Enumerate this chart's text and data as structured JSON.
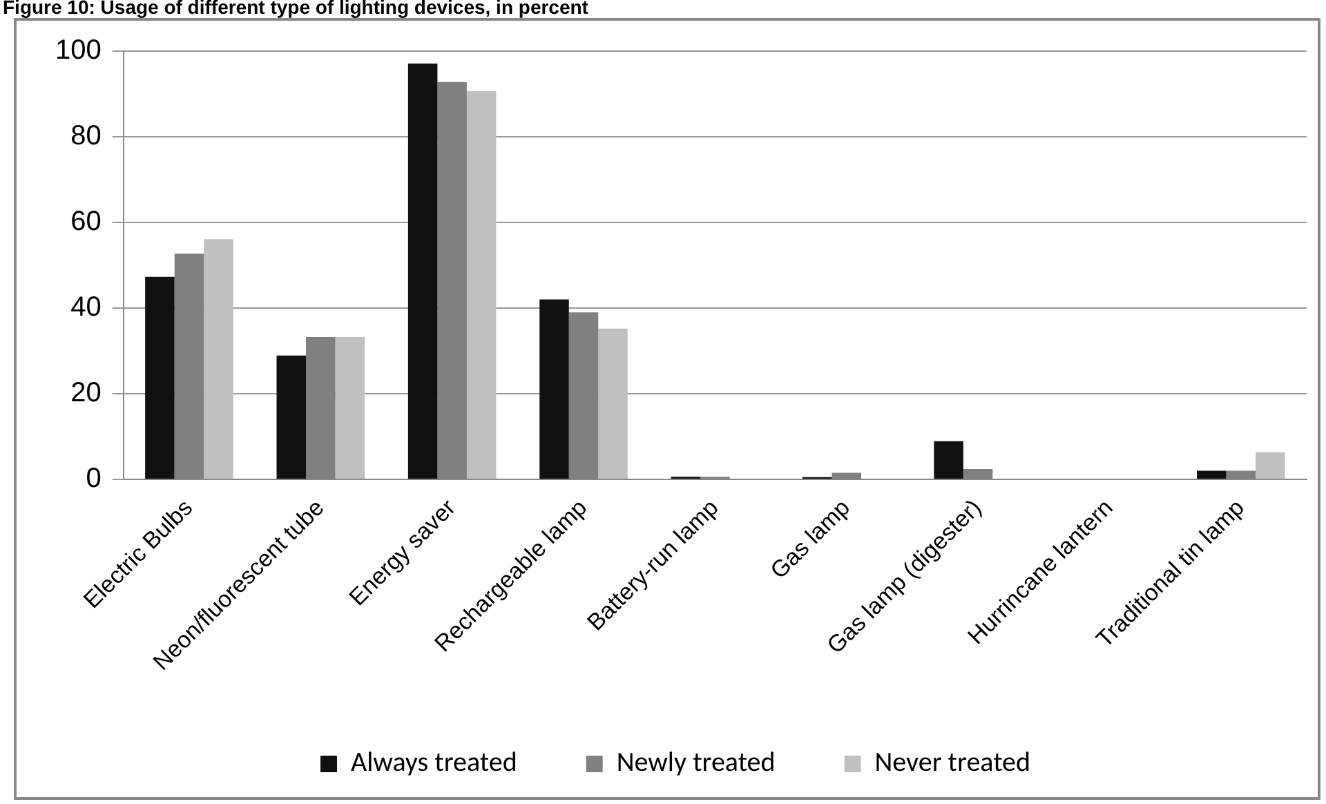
{
  "chart_data": {
    "type": "bar",
    "title": "Figure 10: Usage of different type of lighting devices, in percent",
    "categories": [
      "Electric Bulbs",
      "Neon/fluorescent tube",
      "Energy saver",
      "Rechargeable lamp",
      "Battery-run lamp",
      "Gas lamp",
      "Gas lamp (digester)",
      "Hurrincane lantern",
      "Traditional tin lamp"
    ],
    "series": [
      {
        "name": "Always treated",
        "color": "#111111",
        "values": [
          47.3,
          28.9,
          97.1,
          42.0,
          0.6,
          0.5,
          8.9,
          0,
          2.0
        ]
      },
      {
        "name": "Newly treated",
        "color": "#808080",
        "values": [
          52.7,
          33.2,
          92.8,
          39.0,
          0.6,
          1.5,
          2.4,
          0,
          2.0
        ]
      },
      {
        "name": "Never treated",
        "color": "#c0c0c0",
        "values": [
          56.1,
          33.2,
          90.7,
          35.2,
          0,
          0,
          0,
          0,
          6.3
        ]
      }
    ],
    "ylim": [
      0,
      100
    ],
    "yticks": [
      0,
      20,
      40,
      60,
      80,
      100
    ],
    "grid": "y",
    "legend": "bottom"
  }
}
